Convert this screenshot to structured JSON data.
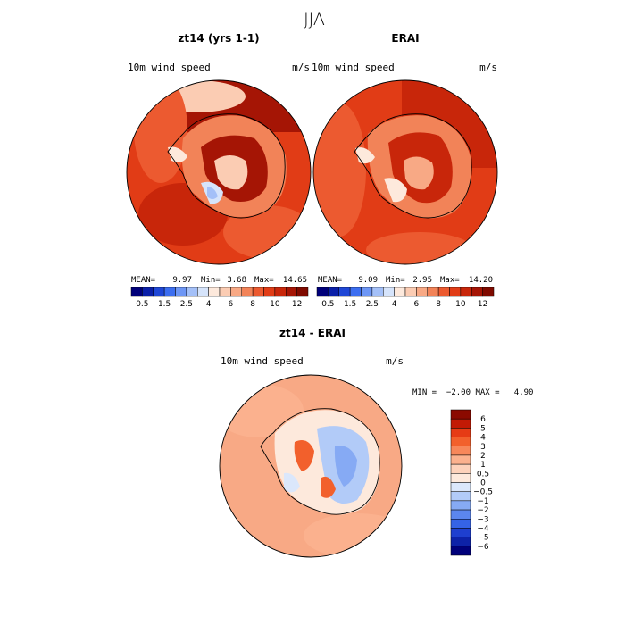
{
  "figure": {
    "season_title": "JJA",
    "panel_left": {
      "title": "zt14 (yrs 1-1)",
      "variable": "10m wind speed",
      "units": "m/s",
      "stats": {
        "mean_label": "MEAN=",
        "mean": "9.97",
        "min_label": "Min=",
        "min": "3.68",
        "max_label": "Max=",
        "max": "14.65"
      }
    },
    "panel_right": {
      "title": "ERAI",
      "variable": "10m wind speed",
      "units": "m/s",
      "stats": {
        "mean_label": "MEAN=",
        "mean": "9.09",
        "min_label": "Min=",
        "min": "2.95",
        "max_label": "Max=",
        "max": "14.20"
      }
    },
    "panel_diff": {
      "title": "zt14 - ERAI",
      "variable": "10m wind speed",
      "units": "m/s",
      "minmax_text": "MIN =  −2.00 MAX =   4.90"
    }
  },
  "chart_data": [
    {
      "type": "heatmap",
      "title": "zt14 (yrs 1-1)",
      "projection": "south polar stereographic",
      "colorbar_levels": [
        0.5,
        1,
        1.5,
        2,
        2.5,
        3,
        4,
        5,
        6,
        7,
        8,
        9,
        10,
        11,
        12
      ],
      "colorbar_tick_labels": [
        "0.5",
        "1.5",
        "2.5",
        "4",
        "6",
        "8",
        "10",
        "12"
      ],
      "colorbar_colors": [
        "#00007a",
        "#0a1fa8",
        "#1f47d6",
        "#3c6ef0",
        "#6d96f5",
        "#a4c0f8",
        "#d6e4fb",
        "#fde9dc",
        "#fbccb3",
        "#f8a985",
        "#f28358",
        "#ec5a30",
        "#e13c16",
        "#c8260a",
        "#a51505",
        "#7f0a00"
      ],
      "mean": 9.97,
      "min": 3.68,
      "max": 14.65
    },
    {
      "type": "heatmap",
      "title": "ERAI",
      "projection": "south polar stereographic",
      "colorbar_levels": [
        0.5,
        1,
        1.5,
        2,
        2.5,
        3,
        4,
        5,
        6,
        7,
        8,
        9,
        10,
        11,
        12
      ],
      "colorbar_tick_labels": [
        "0.5",
        "1.5",
        "2.5",
        "4",
        "6",
        "8",
        "10",
        "12"
      ],
      "mean": 9.09,
      "min": 2.95,
      "max": 14.2
    },
    {
      "type": "heatmap",
      "title": "zt14 - ERAI",
      "projection": "south polar stereographic",
      "colorbar_levels": [
        -6,
        -5,
        -4,
        -3,
        -2,
        -1,
        -0.5,
        0,
        0.5,
        1,
        2,
        3,
        4,
        5,
        6
      ],
      "colorbar_tick_labels": [
        "6",
        "5",
        "4",
        "3",
        "2",
        "1",
        "0.5",
        "0",
        "−0.5",
        "−1",
        "−2",
        "−3",
        "−4",
        "−5",
        "−6"
      ],
      "colorbar_colors": [
        "#8b0a00",
        "#c21a05",
        "#e63b15",
        "#f2602c",
        "#f7875a",
        "#fbb18e",
        "#fdd2bb",
        "#fde9dc",
        "#dbe7fb",
        "#b2cbf8",
        "#86aaf4",
        "#5b86ef",
        "#3563e6",
        "#1e3fcf",
        "#0d22a8",
        "#00007a"
      ],
      "min": -2.0,
      "max": 4.9
    }
  ]
}
